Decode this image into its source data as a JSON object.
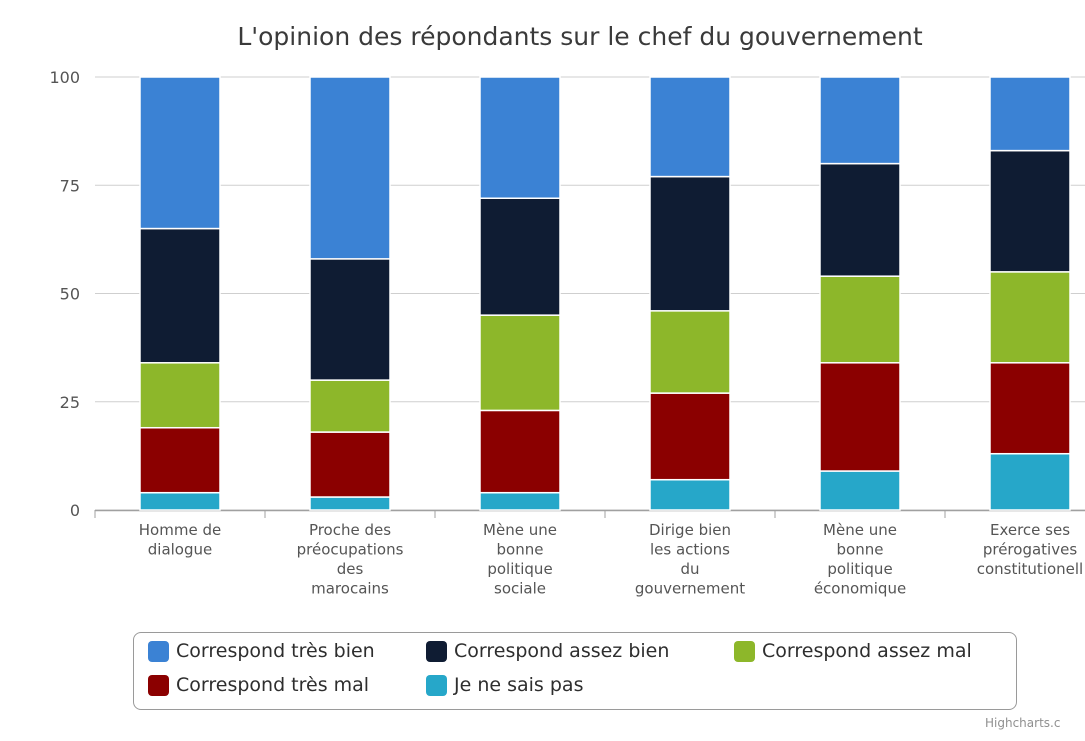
{
  "chart_data": {
    "type": "bar",
    "stacked": true,
    "title": "L'opinion des répondants sur le chef du gouvernement",
    "categories": [
      [
        "Homme de",
        "dialogue"
      ],
      [
        "Proche des",
        "préocupations",
        "des",
        "marocains"
      ],
      [
        "Mène une",
        "bonne",
        "politique",
        "sociale"
      ],
      [
        "Dirige bien",
        "les actions",
        "du",
        "gouvernement"
      ],
      [
        "Mène une",
        "bonne",
        "politique",
        "économique"
      ],
      [
        "Exerce ses",
        "prérogatives",
        "constitutionell"
      ]
    ],
    "series": [
      {
        "name": "Correspond très bien",
        "color": "#3b82d4",
        "values": [
          35,
          42,
          28,
          23,
          20,
          17
        ]
      },
      {
        "name": "Correspond assez bien",
        "color": "#0f1c33",
        "values": [
          31,
          28,
          27,
          31,
          26,
          28
        ]
      },
      {
        "name": "Correspond assez mal",
        "color": "#8db72a",
        "values": [
          15,
          12,
          22,
          19,
          20,
          21
        ]
      },
      {
        "name": "Correspond très mal",
        "color": "#8b0000",
        "values": [
          15,
          15,
          19,
          20,
          25,
          21
        ]
      },
      {
        "name": "Je ne sais pas",
        "color": "#26a7c9",
        "values": [
          4,
          3,
          4,
          7,
          9,
          13
        ]
      }
    ],
    "yticks": [
      0,
      25,
      50,
      75,
      100
    ],
    "ylim": [
      0,
      100
    ],
    "grid": true,
    "legend_position": "bottom",
    "credits": "Highcharts.c"
  }
}
